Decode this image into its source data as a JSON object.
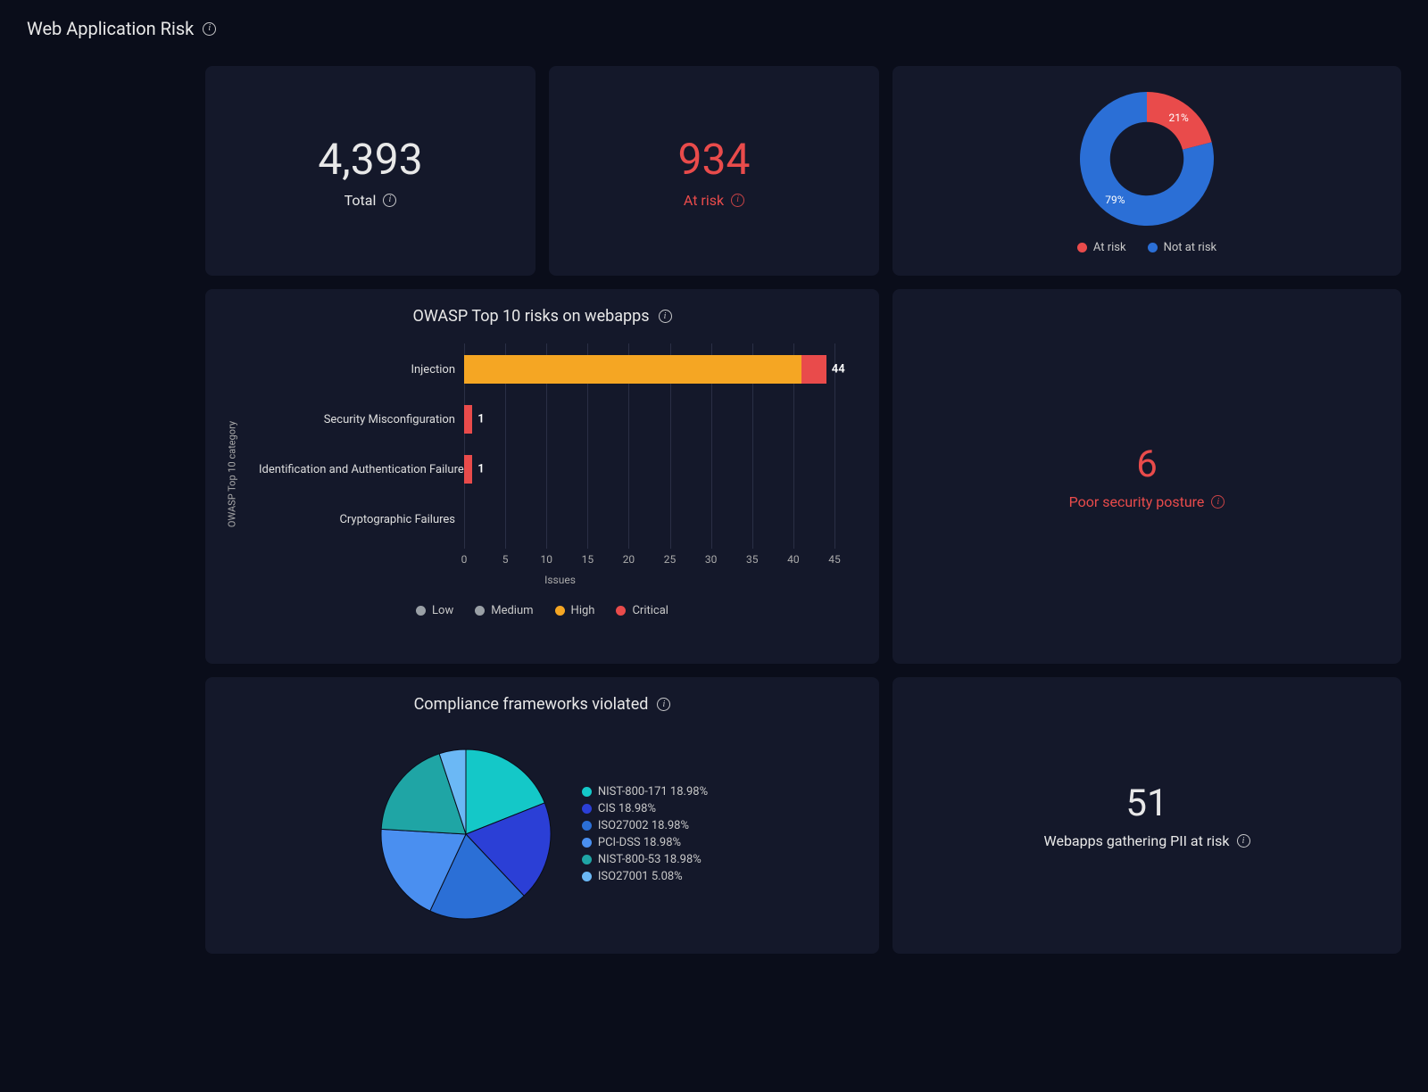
{
  "page": {
    "title": "Web Application Risk"
  },
  "colors": {
    "background": "#0a0d1a",
    "card": "#14182a",
    "text": "#e8e8e8",
    "red": "#e94b4b",
    "blue": "#2b6fd6",
    "grid": "#2a2f45"
  },
  "stats": {
    "total": {
      "value": "4,393",
      "label": "Total"
    },
    "at_risk": {
      "value": "934",
      "label": "At risk"
    },
    "poor_posture": {
      "value": "6",
      "label": "Poor security posture"
    },
    "pii": {
      "value": "51",
      "label": "Webapps gathering PII at risk"
    }
  },
  "donut": {
    "slices": [
      {
        "label": "At risk",
        "pct": 21,
        "color": "#e94b4b"
      },
      {
        "label": "Not at risk",
        "pct": 79,
        "color": "#2b6fd6"
      }
    ],
    "inner_radius_pct": 55,
    "outer_radius": 75,
    "legend": [
      {
        "label": "At risk",
        "color": "#e94b4b"
      },
      {
        "label": "Not at risk",
        "color": "#2b6fd6"
      }
    ]
  },
  "owasp": {
    "title": "OWASP Top 10 risks on webapps",
    "y_axis_label": "OWASP Top 10 category",
    "x_axis_label": "Issues",
    "x_max": 45,
    "x_tick_step": 5,
    "categories": [
      {
        "name": "Injection",
        "total": 44,
        "segments": [
          {
            "level": "High",
            "value": 41,
            "color": "#f5a623"
          },
          {
            "level": "Critical",
            "value": 3,
            "color": "#e94b4b"
          }
        ]
      },
      {
        "name": "Security Misconfiguration",
        "total": 1,
        "segments": [
          {
            "level": "Critical",
            "value": 1,
            "color": "#e94b4b"
          }
        ]
      },
      {
        "name": "Identification and Authentication Failures",
        "total": 1,
        "segments": [
          {
            "level": "Critical",
            "value": 1,
            "color": "#e94b4b"
          }
        ]
      },
      {
        "name": "Cryptographic Failures",
        "total": 0,
        "segments": []
      }
    ],
    "legend": [
      {
        "label": "Low",
        "color": "#9aa0a6"
      },
      {
        "label": "Medium",
        "color": "#9aa0a6"
      },
      {
        "label": "High",
        "color": "#f5a623"
      },
      {
        "label": "Critical",
        "color": "#e94b4b"
      }
    ]
  },
  "compliance": {
    "title": "Compliance frameworks violated",
    "slices": [
      {
        "label": "NIST-800-171",
        "pct": 18.98,
        "color": "#14c8c8"
      },
      {
        "label": "CIS",
        "pct": 18.98,
        "color": "#2b3fd6"
      },
      {
        "label": "ISO27002",
        "pct": 18.98,
        "color": "#2b6fd6"
      },
      {
        "label": "PCI-DSS",
        "pct": 18.98,
        "color": "#4a8ff0"
      },
      {
        "label": "NIST-800-53",
        "pct": 18.98,
        "color": "#1fa5a5"
      },
      {
        "label": "ISO27001",
        "pct": 5.08,
        "color": "#6bb8f5"
      }
    ],
    "radius": 95
  }
}
